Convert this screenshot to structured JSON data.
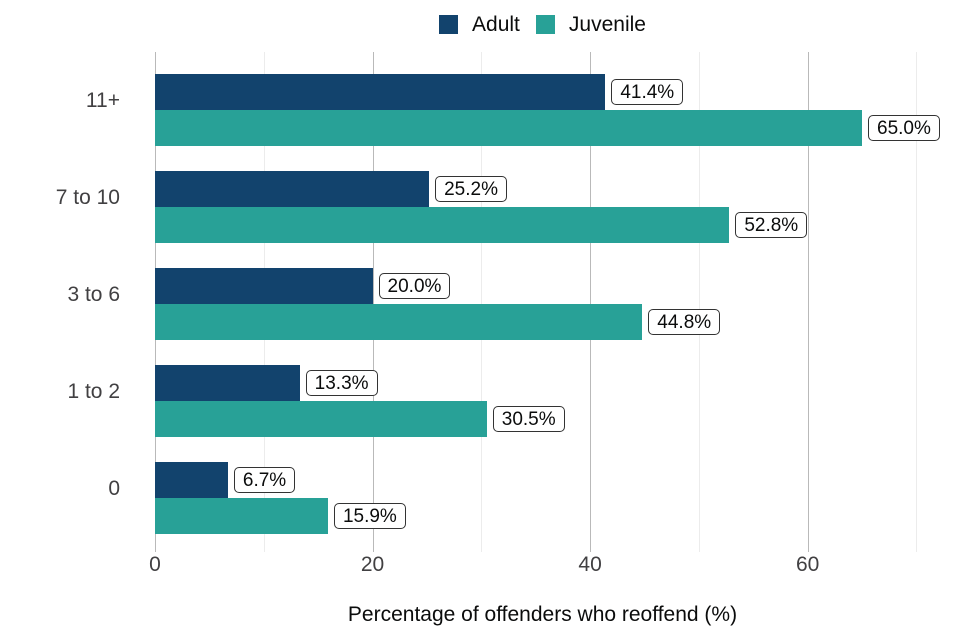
{
  "chart_data": {
    "type": "bar",
    "orientation": "horizontal",
    "title": "",
    "xlabel": "Percentage of offenders who reoffend (%)",
    "ylabel": "",
    "categories": [
      "11+",
      "7 to 10",
      "3 to 6",
      "1 to 2",
      "0"
    ],
    "series": [
      {
        "name": "Adult",
        "color": "#12436D",
        "values": [
          41.4,
          25.2,
          20.0,
          13.3,
          6.7
        ],
        "labels": [
          "41.4%",
          "25.2%",
          "20.0%",
          "13.3%",
          "6.7%"
        ]
      },
      {
        "name": "Juvenile",
        "color": "#28A197",
        "values": [
          65.0,
          52.8,
          44.8,
          30.5,
          15.9
        ],
        "labels": [
          "65.0%",
          "52.8%",
          "44.8%",
          "30.5%",
          "15.9%"
        ]
      }
    ],
    "x_axis": {
      "min": 0,
      "max": 71.25,
      "major_ticks": [
        0,
        20,
        40,
        60
      ],
      "major_tick_labels": [
        "0",
        "20",
        "40",
        "60"
      ],
      "minor_ticks": [
        10,
        30,
        50,
        70
      ]
    },
    "legend_position": "top",
    "grid": true
  },
  "colors": {
    "major_grid": "#b9b9b9",
    "minor_grid": "#ececec",
    "axis_text": "#414042",
    "label_box_border": "#333333",
    "label_box_bg": "#ffffff",
    "text": "#0b0c0c"
  }
}
